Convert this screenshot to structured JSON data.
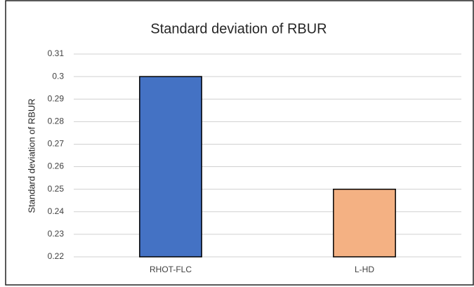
{
  "chart_data": {
    "type": "bar",
    "title": "Standard deviation of RBUR",
    "y_label": "Standard deviation of RBUR",
    "categories": [
      "RHOT-FLC",
      "L-HD"
    ],
    "values": [
      0.3,
      0.25
    ],
    "colors": [
      "#4472c4",
      "#f4b183"
    ],
    "ylim": [
      0.22,
      0.31
    ],
    "yticks": [
      0.22,
      0.23,
      0.24,
      0.25,
      0.26,
      0.27,
      0.28,
      0.29,
      0.3,
      0.31
    ],
    "grid": true
  }
}
